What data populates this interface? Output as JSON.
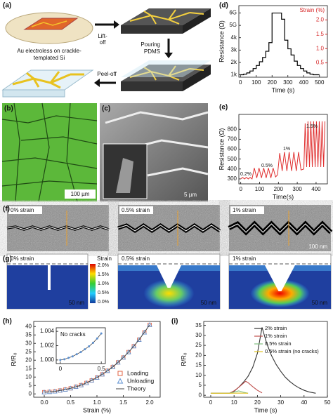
{
  "panel_labels": [
    "(a)",
    "(b)",
    "(c)",
    "(d)",
    "(e)",
    "(f)",
    "(g)",
    "(h)",
    "(i)"
  ],
  "schematic": {
    "steps": [
      [
        "Au electroless on crackle-",
        "templated Si"
      ],
      [
        "Lift-",
        "off"
      ],
      [
        "Pouring",
        "PDMS"
      ],
      [
        "Peel-off"
      ]
    ]
  },
  "micrographs": {
    "b_scale": "100 µm",
    "c_scale": "5 µm",
    "f_labels": [
      "0% strain",
      "0.5% strain",
      "1% strain"
    ],
    "f_scale": "100 nm",
    "g_labels": [
      "0% strain",
      "0.5% strain",
      "1% strain"
    ],
    "g_scales": [
      "50 nm",
      "50 nm",
      "50 nm"
    ],
    "colorbar": {
      "title": "Strain",
      "ticks": [
        "2.0%",
        "1.5%",
        "1.0%",
        "0.5%",
        "0.0%"
      ]
    }
  },
  "chart_data": [
    {
      "type": "step",
      "xlabel": "Time (s)",
      "ylabel": "Resistance (Ω)",
      "y2label": "Strain (%)",
      "color": "#000000",
      "y2color": "#d62728",
      "x": [
        0,
        20,
        40,
        60,
        80,
        100,
        120,
        140,
        160,
        180,
        200,
        220,
        240,
        260,
        280,
        300,
        320,
        340,
        360,
        380,
        400,
        420,
        440,
        460,
        480,
        500
      ],
      "values": [
        1000,
        1050,
        1150,
        1300,
        1500,
        1750,
        2050,
        2400,
        2900,
        3600,
        6000000000,
        6000000000,
        6000000000,
        5500000000,
        3800,
        3100,
        2600,
        2100,
        1750,
        1500,
        1300,
        1150,
        1050,
        1000,
        1000,
        1000
      ],
      "xlim": [
        -10,
        550
      ],
      "xticks": [
        0,
        100,
        200,
        300,
        400,
        500
      ],
      "ylim": [
        800,
        6600000000
      ],
      "yticks": [
        {
          "value": 1000,
          "label": "1k"
        },
        {
          "value": 2000,
          "label": "2k"
        },
        {
          "value": 3000,
          "label": "3k"
        },
        {
          "value": 4000,
          "label": "4k"
        },
        {
          "value": 5000000000,
          "label": "5G"
        },
        {
          "value": 6000000000,
          "label": "6G"
        }
      ],
      "y2lim": [
        0,
        2.5
      ],
      "y2ticks": [
        0.5,
        {
          "value": 1,
          "label": "1.0"
        },
        1.5,
        {
          "value": 2,
          "label": "2.0"
        }
      ]
    },
    {
      "type": "line",
      "xlabel": "Time(s)",
      "ylabel": "Resistance (Ω)",
      "color": "#e03030",
      "annotations": [
        "0.2%",
        "0.5%",
        "1%",
        "1.5%"
      ],
      "x": [
        0,
        10,
        20,
        30,
        40,
        50,
        60,
        72,
        85,
        97,
        110,
        122,
        135,
        147,
        160,
        172,
        185,
        195,
        207,
        220,
        232,
        245,
        257,
        270,
        282,
        295,
        307,
        320,
        335,
        342,
        350,
        357,
        365,
        372,
        380,
        387,
        395,
        402,
        410,
        417,
        425,
        432,
        440,
        447
      ],
      "values": [
        300,
        315,
        300,
        315,
        300,
        315,
        300,
        410,
        310,
        410,
        310,
        410,
        310,
        410,
        310,
        410,
        320,
        340,
        560,
        380,
        570,
        380,
        570,
        380,
        570,
        380,
        570,
        390,
        400,
        860,
        420,
        880,
        420,
        880,
        420,
        880,
        420,
        880,
        420,
        880,
        420,
        880,
        420,
        880
      ],
      "xlim": [
        -10,
        460
      ],
      "xticks": [
        0,
        100,
        200,
        300,
        400
      ],
      "ylim": [
        250,
        950
      ],
      "yticks": [
        300,
        400,
        500,
        600,
        700,
        800
      ]
    },
    {
      "type": "scatter-line",
      "xlabel": "Strain (%)",
      "ylabel": "R/R₀",
      "x": [
        0,
        0.1,
        0.2,
        0.3,
        0.4,
        0.5,
        0.6,
        0.7,
        0.8,
        0.9,
        1.0,
        1.1,
        1.2,
        1.3,
        1.4,
        1.5,
        1.6,
        1.7,
        1.8,
        1.9,
        2.0
      ],
      "series": [
        {
          "name": "Loading",
          "marker": "square",
          "color": "#e06040",
          "values": [
            1,
            1.2,
            1.5,
            2,
            2.6,
            3.3,
            4.2,
            5.2,
            6.5,
            8,
            9.7,
            11.6,
            13.7,
            16,
            18.7,
            21.6,
            24.8,
            28.3,
            32.2,
            36.5,
            41
          ]
        },
        {
          "name": "Unloading",
          "marker": "triangle",
          "color": "#5b8fd0",
          "values": [
            1,
            1.2,
            1.5,
            2,
            2.6,
            3.3,
            4.2,
            5.2,
            6.5,
            8,
            9.7,
            11.6,
            13.7,
            16,
            18.7,
            21.6,
            24.8,
            28.3,
            32.2,
            36.5,
            41
          ]
        },
        {
          "name": "Theory",
          "marker": "line",
          "color": "#444444",
          "values": [
            1,
            1.2,
            1.5,
            2,
            2.6,
            3.3,
            4.2,
            5.2,
            6.5,
            8,
            9.7,
            11.6,
            13.7,
            16,
            18.7,
            21.6,
            24.8,
            28.3,
            32.2,
            36.5,
            41
          ]
        }
      ],
      "xlim": [
        -0.2,
        2.2
      ],
      "xticks": [
        {
          "value": 0,
          "label": "0.0"
        },
        0.5,
        {
          "value": 1,
          "label": "1.0"
        },
        1.5,
        {
          "value": 2,
          "label": "2.0"
        }
      ],
      "ylim": [
        -2,
        43
      ],
      "yticks": [
        0,
        5,
        10,
        15,
        20,
        25,
        30,
        35,
        40
      ],
      "inset": {
        "title": "No cracks",
        "x": [
          0,
          0.05,
          0.1,
          0.15,
          0.2,
          0.25,
          0.3,
          0.35,
          0.4,
          0.45,
          0.5
        ],
        "values": [
          1.0,
          1.0001,
          1.0003,
          1.0005,
          1.0008,
          1.0011,
          1.0015,
          1.0019,
          1.0024,
          1.003,
          1.0037
        ],
        "xlim": [
          -0.05,
          0.55
        ],
        "xticks": [
          0,
          0.5
        ],
        "ylim": [
          0.9995,
          1.0045
        ],
        "yticks": [
          {
            "value": 1.0,
            "label": "1.000"
          },
          {
            "value": 1.002,
            "label": "1.002"
          },
          {
            "value": 1.004,
            "label": "1.004"
          }
        ]
      }
    },
    {
      "type": "multi-line",
      "xlabel": "Time (s)",
      "ylabel": "R/R₀",
      "series": [
        {
          "name": "2% strain",
          "color": "#333333",
          "x": [
            0,
            8,
            10,
            12,
            14,
            16,
            18,
            20,
            22,
            24,
            26,
            28,
            30,
            32,
            34,
            36,
            38,
            40,
            42,
            45
          ],
          "values": [
            1,
            1,
            2,
            4,
            6.5,
            9.5,
            14,
            21,
            34,
            26,
            20,
            15.5,
            12,
            9,
            6.8,
            5,
            3.6,
            2.5,
            1.7,
            1
          ]
        },
        {
          "name": "1% strain",
          "color": "#c0504d",
          "x": [
            0,
            8,
            10,
            12,
            14,
            15,
            16,
            18,
            20,
            22
          ],
          "values": [
            1,
            1,
            2.2,
            4,
            6,
            7,
            6.3,
            4.3,
            2.5,
            1.2
          ]
        },
        {
          "name": "0.5% strain",
          "color": "#7fbf7f",
          "x": [
            0,
            8,
            10,
            12,
            14,
            16
          ],
          "values": [
            1,
            1,
            1.6,
            2.2,
            1.5,
            1
          ]
        },
        {
          "name": "0.5% strain (no cracks)",
          "color": "#e0c020",
          "x": [
            0,
            8,
            12,
            16
          ],
          "values": [
            1,
            1,
            1.1,
            1
          ]
        }
      ],
      "xlim": [
        -3,
        50
      ],
      "xticks": [
        0,
        10,
        20,
        30,
        40,
        50
      ],
      "ylim": [
        -1,
        37
      ],
      "yticks": [
        0,
        5,
        10,
        15,
        20,
        25,
        30,
        35
      ]
    }
  ]
}
